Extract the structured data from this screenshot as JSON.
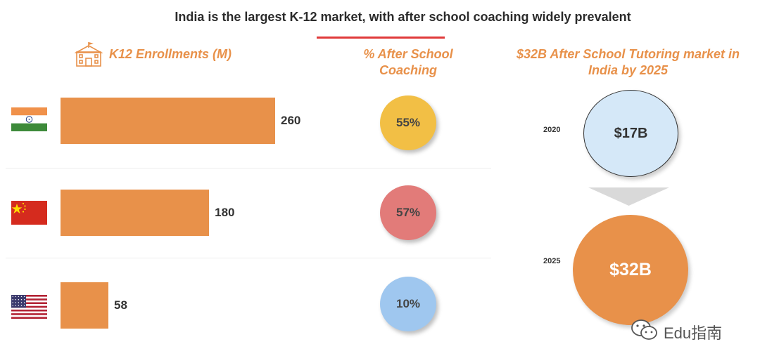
{
  "title": "India is the largest K-12 market, with after school coaching widely prevalent",
  "sections": {
    "enrollments": "K12 Enrollments (M)",
    "coaching_line1": "% After School",
    "coaching_line2": "Coaching",
    "market_line1": "$32B After School Tutoring market in",
    "market_line2": "India by 2025"
  },
  "icons": {
    "school": "school-building-icon",
    "flags": [
      "india-flag-icon",
      "china-flag-icon",
      "usa-flag-icon"
    ],
    "watermark": "wechat-icon"
  },
  "colors": {
    "accent": "#e8914a",
    "title_rule": "#e03a3a",
    "coaching": [
      "#f2bf45",
      "#e27b79",
      "#9fc7ef"
    ],
    "market_2020": "#d5e8f8",
    "market_2025": "#e8914a"
  },
  "chart_data": [
    {
      "type": "bar",
      "orientation": "horizontal",
      "title": "K12 Enrollments (M)",
      "categories": [
        "India",
        "China",
        "USA"
      ],
      "values": [
        260,
        180,
        58
      ],
      "value_labels": [
        "260",
        "180",
        "58"
      ]
    },
    {
      "type": "bubble",
      "title": "% After School Coaching",
      "categories": [
        "India",
        "China",
        "USA"
      ],
      "values": [
        55,
        57,
        10
      ],
      "value_labels": [
        "55%",
        "57%",
        "10%"
      ]
    },
    {
      "type": "bubble",
      "title": "$32B After School Tutoring market in India by 2025",
      "categories": [
        "2020",
        "2025"
      ],
      "values": [
        17,
        32
      ],
      "value_labels": [
        "$17B",
        "$32B"
      ]
    }
  ],
  "watermark": "Edu指南"
}
